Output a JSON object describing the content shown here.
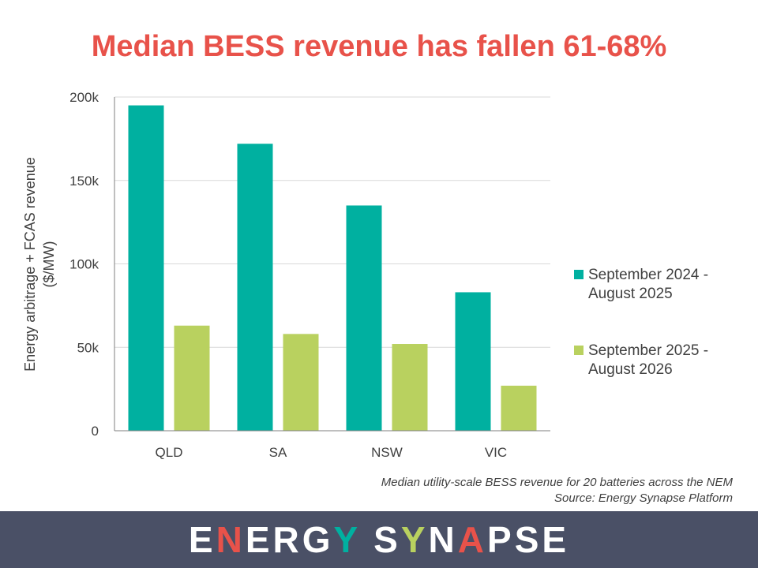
{
  "chart_data": {
    "type": "bar",
    "title": "Median BESS revenue has fallen 61-68%",
    "categories": [
      "QLD",
      "SA",
      "NSW",
      "VIC"
    ],
    "series": [
      {
        "name": "September 2024 - August 2025",
        "color": "#00b0a0",
        "values": [
          195000,
          172000,
          135000,
          83000
        ]
      },
      {
        "name": "September 2025 - August 2026",
        "color": "#b9d15f",
        "values": [
          63000,
          58000,
          52000,
          27000
        ]
      }
    ],
    "ylabel_line1": "Energy arbitrage + FCAS revenue",
    "ylabel_line2": "($/MW)",
    "ylim": [
      0,
      200000
    ],
    "yticks": [
      0,
      50000,
      100000,
      150000,
      200000
    ],
    "ytick_labels": [
      "0",
      "50k",
      "100k",
      "150k",
      "200k"
    ],
    "grid": true,
    "legend_position": "right"
  },
  "notes": {
    "line1": "Median utility-scale BESS  revenue for 20 batteries across the NEM",
    "line2": "Source: Energy Synapse Platform"
  },
  "logo": {
    "segments": [
      {
        "text": "E",
        "style": "light"
      },
      {
        "text": "N",
        "style": "red"
      },
      {
        "text": "ERG",
        "style": "light"
      },
      {
        "text": "Y",
        "style": "teal"
      },
      {
        "text": " S",
        "style": "light"
      },
      {
        "text": "Y",
        "style": "green"
      },
      {
        "text": "N",
        "style": "light"
      },
      {
        "text": "A",
        "style": "red"
      },
      {
        "text": "PSE",
        "style": "light"
      }
    ]
  }
}
